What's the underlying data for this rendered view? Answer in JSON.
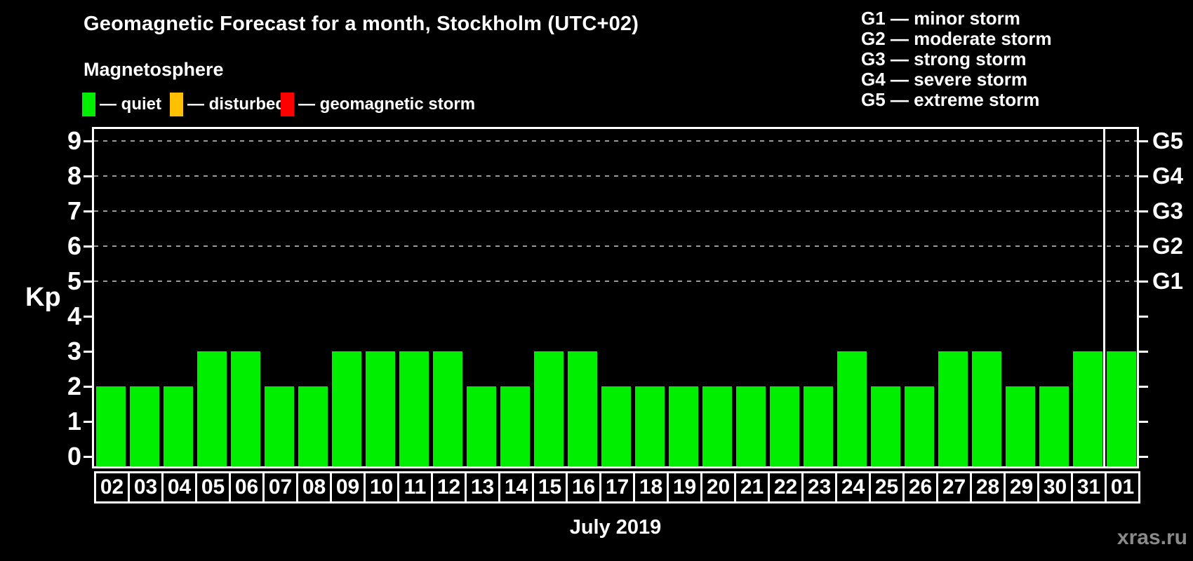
{
  "title": "Geomagnetic Forecast for a month, Stockholm (UTC+02)",
  "subtitle": "Magnetosphere",
  "magnetosphere_legend": [
    {
      "name": "quiet",
      "label": "— quiet",
      "color": "#00ee00"
    },
    {
      "name": "disturbed",
      "label": "— disturbed",
      "color": "#ffc000"
    },
    {
      "name": "geomagnetic-storm",
      "label": "— geomagnetic storm",
      "color": "#ff0000"
    }
  ],
  "storm_scale_legend": [
    "G1 — minor storm",
    "G2 — moderate storm",
    "G3 — strong storm",
    "G4 — severe storm",
    "G5 — extreme storm"
  ],
  "watermark": "xras.ru",
  "colors": {
    "background": "#000000",
    "axis": "#ffffff",
    "grid": "#9a9a9a",
    "bar": "#00ee00",
    "watermark": "#8a8a8a"
  },
  "chart_data": {
    "type": "bar",
    "title": "Geomagnetic Forecast for a month, Stockholm (UTC+02)",
    "categories": [
      "02",
      "03",
      "04",
      "05",
      "06",
      "07",
      "08",
      "09",
      "10",
      "11",
      "12",
      "13",
      "14",
      "15",
      "16",
      "17",
      "18",
      "19",
      "20",
      "21",
      "22",
      "23",
      "24",
      "25",
      "26",
      "27",
      "28",
      "29",
      "30",
      "31",
      "01"
    ],
    "values": [
      2,
      2,
      2,
      3,
      3,
      2,
      2,
      3,
      3,
      3,
      3,
      2,
      2,
      3,
      3,
      2,
      2,
      2,
      2,
      2,
      2,
      2,
      3,
      2,
      2,
      3,
      3,
      2,
      2,
      3,
      3
    ],
    "xlabel": "July 2019",
    "ylabel": "Kp",
    "ylim": [
      0,
      9
    ],
    "yticks": [
      0,
      1,
      2,
      3,
      4,
      5,
      6,
      7,
      8,
      9
    ],
    "gridlines_at": [
      5,
      6,
      7,
      8,
      9
    ],
    "right_axis_labels": [
      {
        "kp": 5,
        "label": "G1"
      },
      {
        "kp": 6,
        "label": "G2"
      },
      {
        "kp": 7,
        "label": "G3"
      },
      {
        "kp": 8,
        "label": "G4"
      },
      {
        "kp": 9,
        "label": "G5"
      }
    ],
    "bar_color": "#00ee00",
    "month_separator_before_category": "01",
    "grid": true,
    "legend_position": "top-left"
  }
}
